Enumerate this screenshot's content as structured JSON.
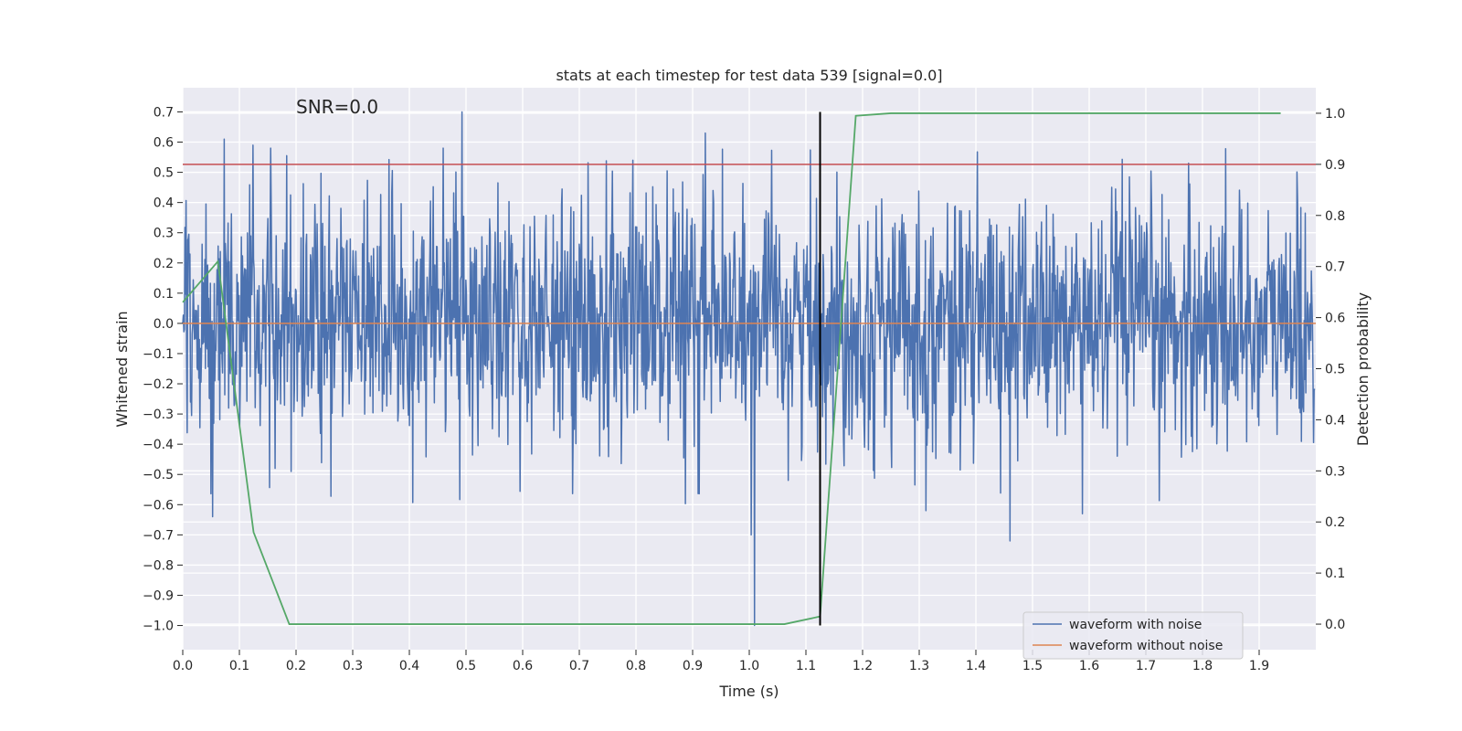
{
  "chart_data": {
    "type": "line",
    "title": "stats at each timestep for test data 539 [signal=0.0]",
    "xlabel": "Time (s)",
    "ylabel": "Whitened strain",
    "y2label": "Detection probability",
    "annotation": "SNR=0.0",
    "xlim": [
      0.0,
      2.0
    ],
    "ylim": [
      -1.08,
      0.78
    ],
    "y2lim": [
      -0.05,
      1.05
    ],
    "xticks": [
      "0.0",
      "0.1",
      "0.2",
      "0.3",
      "0.4",
      "0.5",
      "0.6",
      "0.7",
      "0.8",
      "0.9",
      "1.0",
      "1.1",
      "1.2",
      "1.3",
      "1.4",
      "1.5",
      "1.6",
      "1.7",
      "1.8",
      "1.9"
    ],
    "yticks": [
      "0.7",
      "0.6",
      "0.5",
      "0.4",
      "0.3",
      "0.2",
      "0.1",
      "0.0",
      "−0.1",
      "−0.2",
      "−0.3",
      "−0.4",
      "−0.5",
      "−0.6",
      "−0.7",
      "−0.8",
      "−0.9",
      "−1.0"
    ],
    "y2ticks": [
      "1.0",
      "0.9",
      "0.8",
      "0.7",
      "0.6",
      "0.5",
      "0.4",
      "0.3",
      "0.2",
      "0.1",
      "0.0"
    ],
    "grid": true,
    "legend_position": "bottom-right",
    "legend": [
      "waveform with noise",
      "waveform without noise"
    ],
    "colors": {
      "noise": "#4c72b0",
      "clean": "#dd8452",
      "probability": "#55a868",
      "threshold": "#c44e52",
      "marker": "#000000",
      "background": "#eaeaf2",
      "grid": "#ffffff"
    },
    "series": [
      {
        "name": "waveform with noise",
        "note_samples": 2048,
        "amplitude_sd": 0.2,
        "peaks": [
          {
            "x": 0.053,
            "y": -0.64
          },
          {
            "x": 0.073,
            "y": 0.61
          },
          {
            "x": 0.124,
            "y": 0.59
          },
          {
            "x": 0.155,
            "y": 0.58
          },
          {
            "x": 0.163,
            "y": -0.48
          },
          {
            "x": 0.493,
            "y": 0.7
          },
          {
            "x": 0.46,
            "y": 0.58
          },
          {
            "x": 0.922,
            "y": 0.63
          },
          {
            "x": 1.003,
            "y": -0.7
          },
          {
            "x": 1.009,
            "y": -1.0
          },
          {
            "x": 1.46,
            "y": -0.72
          },
          {
            "x": 1.588,
            "y": -0.63
          },
          {
            "x": 1.775,
            "y": 0.53
          },
          {
            "x": 1.312,
            "y": -0.62
          }
        ]
      },
      {
        "name": "waveform without noise",
        "x": [
          0.0,
          2.0
        ],
        "y": [
          0.0,
          0.0
        ]
      },
      {
        "name": "detection probability",
        "axis": "right",
        "x": [
          0.0,
          0.062,
          0.125,
          0.188,
          0.25,
          0.312,
          0.375,
          0.438,
          0.5,
          0.562,
          0.625,
          0.688,
          0.75,
          0.812,
          0.875,
          0.938,
          1.0,
          1.062,
          1.125,
          1.188,
          1.25,
          1.312,
          1.375,
          1.438,
          1.5,
          1.562,
          1.625,
          1.688,
          1.75,
          1.812,
          1.875,
          1.938
        ],
        "y": [
          0.63,
          0.71,
          0.18,
          0.0,
          0.0,
          0.0,
          0.0,
          0.0,
          0.0,
          0.0,
          0.0,
          0.0,
          0.0,
          0.0,
          0.0,
          0.0,
          0.0,
          0.0,
          0.015,
          0.995,
          1.0,
          1.0,
          1.0,
          1.0,
          1.0,
          1.0,
          1.0,
          1.0,
          1.0,
          1.0,
          1.0,
          1.0
        ]
      }
    ],
    "threshold": {
      "axis": "right",
      "y": 0.9
    },
    "marker_line": {
      "x": 1.125,
      "y_from": -1.0,
      "y_to": 0.7
    }
  }
}
